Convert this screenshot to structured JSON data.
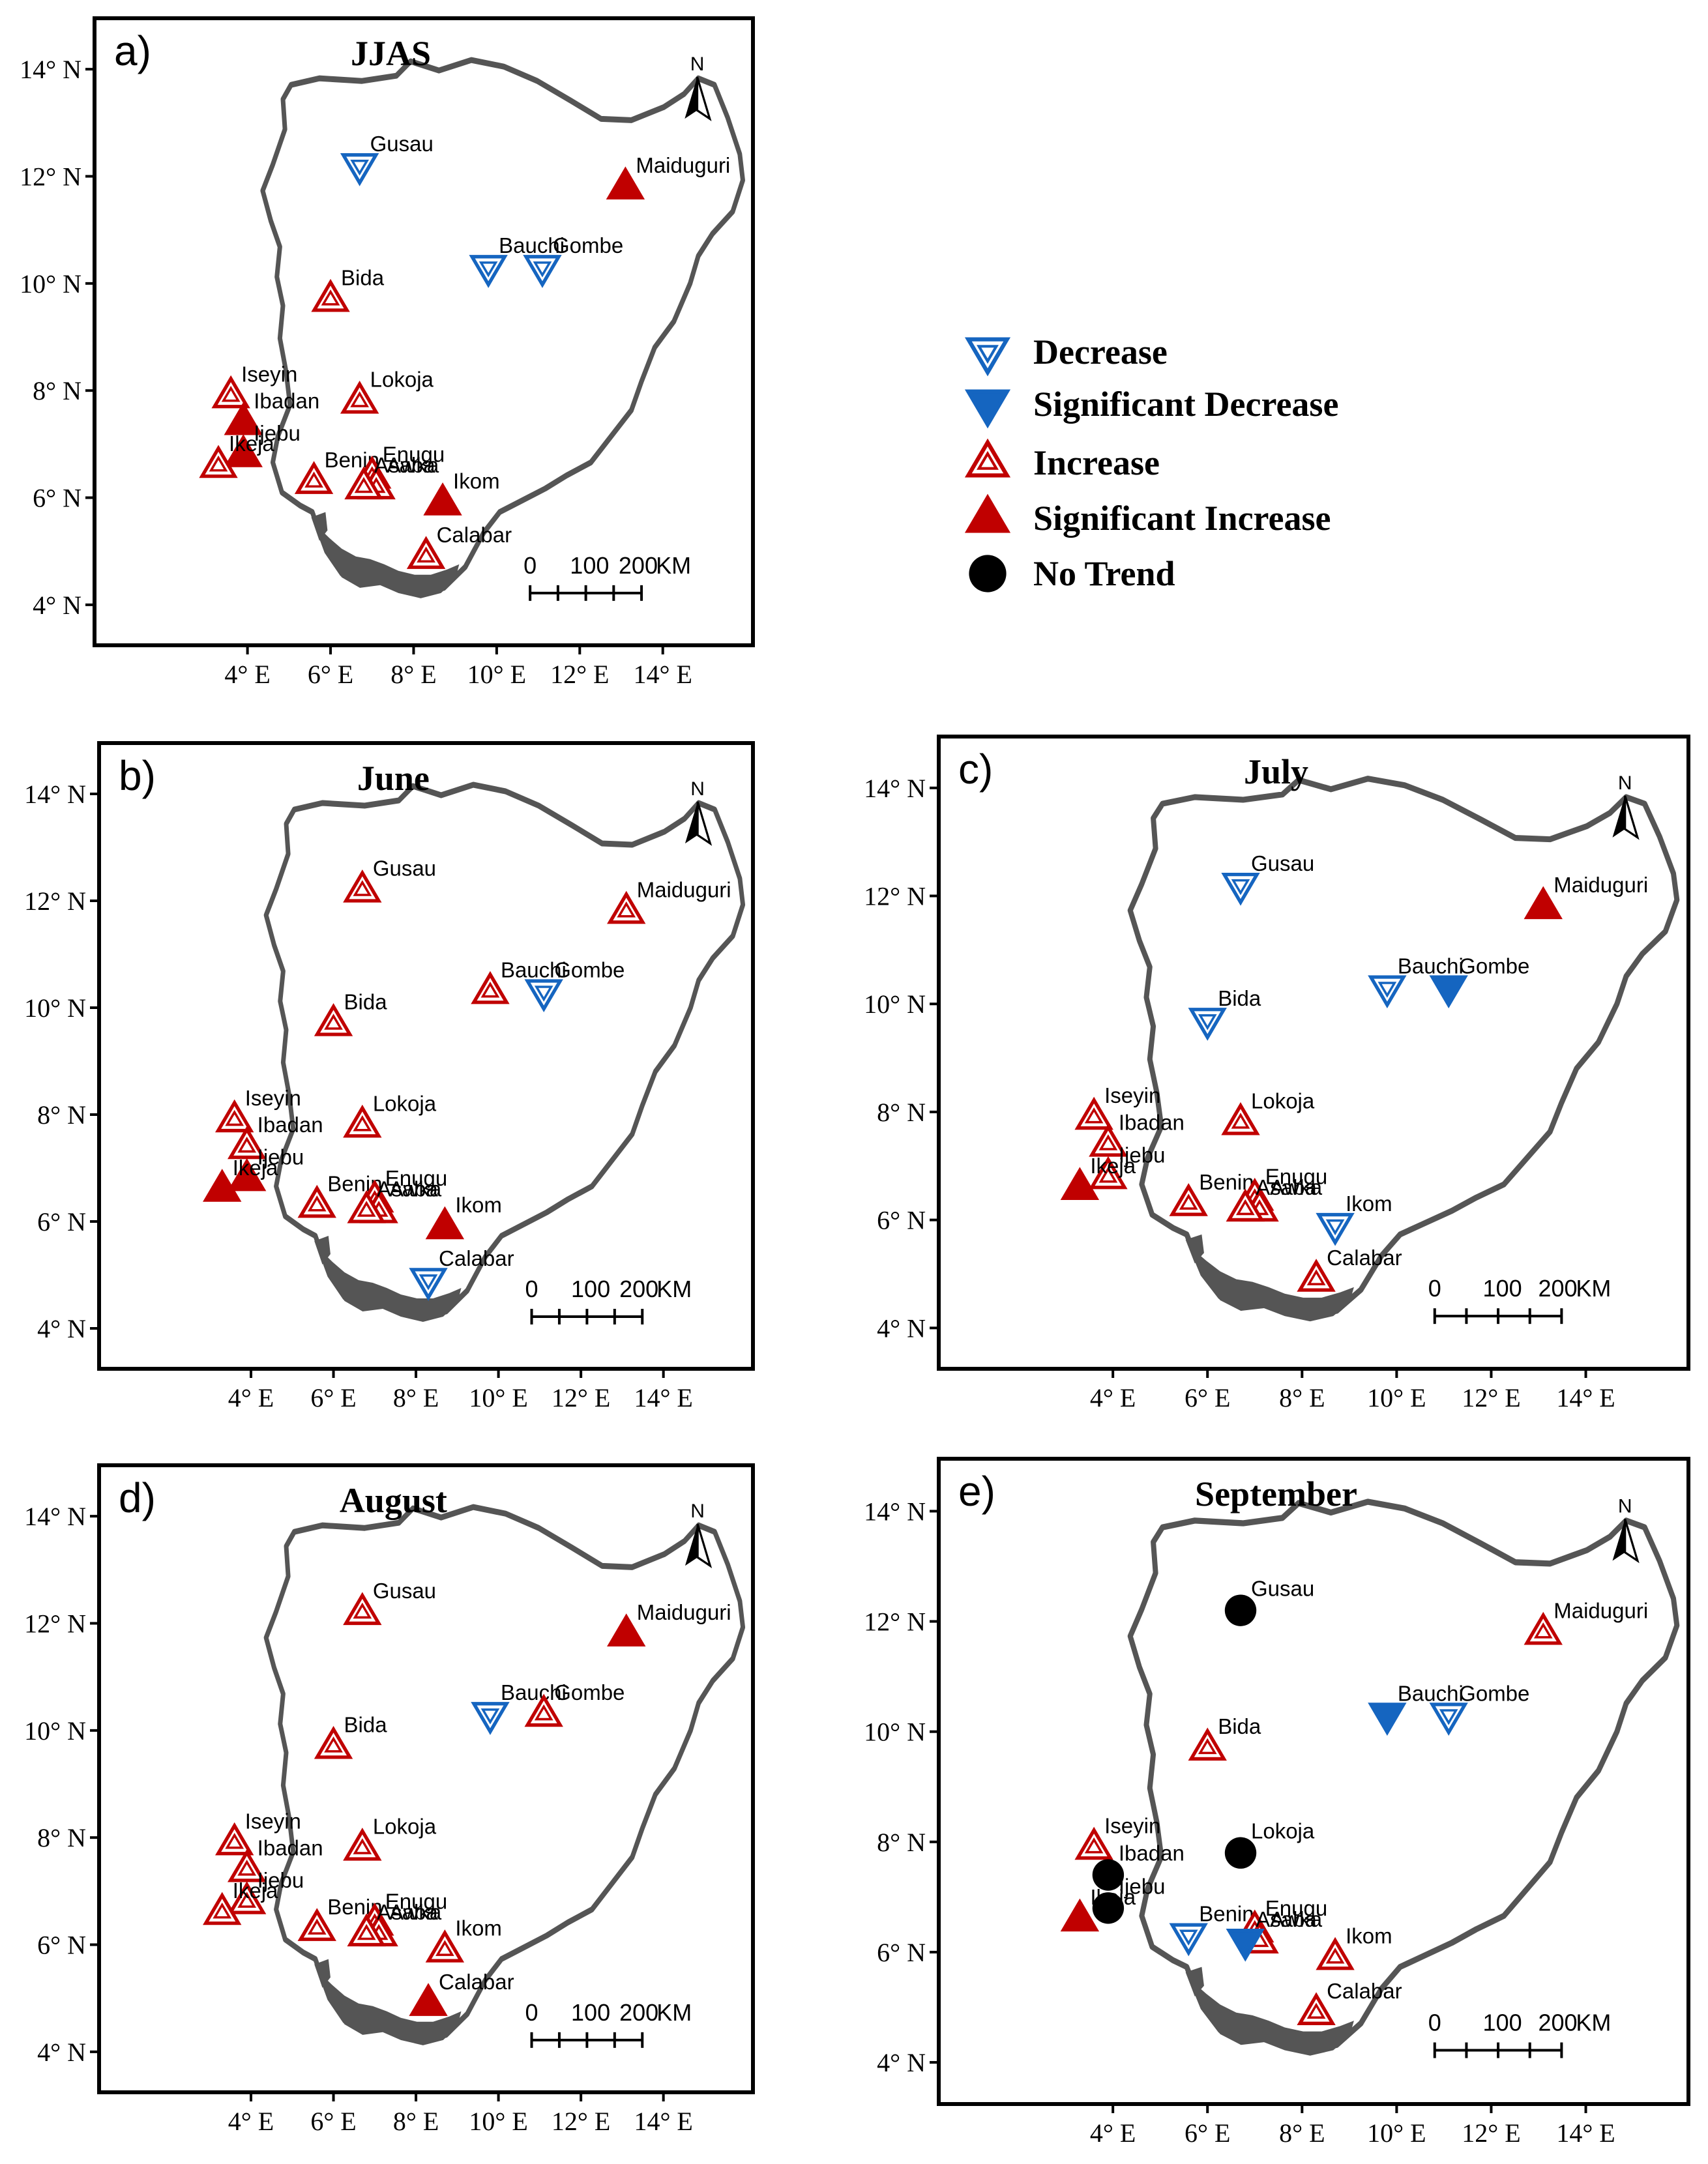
{
  "colors": {
    "increase": "#c00000",
    "decrease": "#1565c0",
    "notrend": "#000000",
    "outline": "#555555"
  },
  "axes": {
    "lat_labels": [
      "4° N",
      "6° N",
      "8° N",
      "10° N",
      "12° N",
      "14° N"
    ],
    "lon_labels": [
      "4° E",
      "6° E",
      "8° E",
      "10° E",
      "12° E",
      "14° E"
    ]
  },
  "scalebar": {
    "values": [
      "0",
      "100",
      "200"
    ],
    "unit": "KM"
  },
  "north_label": "N",
  "legend": [
    {
      "symbol": "dec",
      "label": "Decrease"
    },
    {
      "symbol": "sdec",
      "label": "Significant Decrease"
    },
    {
      "symbol": "inc",
      "label": "Increase"
    },
    {
      "symbol": "sinc",
      "label": "Significant Increase"
    },
    {
      "symbol": "none",
      "label": "No Trend"
    }
  ],
  "stations": [
    {
      "name": "Gusau",
      "lon": 6.7,
      "lat": 12.2
    },
    {
      "name": "Maiduguri",
      "lon": 13.1,
      "lat": 11.8
    },
    {
      "name": "Bauchi",
      "lon": 9.8,
      "lat": 10.3
    },
    {
      "name": "Gombe",
      "lon": 11.1,
      "lat": 10.3
    },
    {
      "name": "Bida",
      "lon": 6.0,
      "lat": 9.7
    },
    {
      "name": "Iseyin",
      "lon": 3.6,
      "lat": 7.9
    },
    {
      "name": "Lokoja",
      "lon": 6.7,
      "lat": 7.8
    },
    {
      "name": "Ibadan",
      "lon": 3.9,
      "lat": 7.4
    },
    {
      "name": "Ijebu",
      "lon": 3.9,
      "lat": 6.8
    },
    {
      "name": "Ikeja",
      "lon": 3.3,
      "lat": 6.6
    },
    {
      "name": "Benin",
      "lon": 5.6,
      "lat": 6.3
    },
    {
      "name": "Enugu",
      "lon": 7.0,
      "lat": 6.4
    },
    {
      "name": "Awka",
      "lon": 7.1,
      "lat": 6.2
    },
    {
      "name": "Asaba",
      "lon": 6.8,
      "lat": 6.2
    },
    {
      "name": "Ikom",
      "lon": 8.7,
      "lat": 5.9
    },
    {
      "name": "Calabar",
      "lon": 8.3,
      "lat": 4.9
    }
  ],
  "maps": [
    {
      "letter": "a)",
      "title": "JJAS",
      "trends": [
        "dec",
        "sinc",
        "dec",
        "dec",
        "inc",
        "inc",
        "inc",
        "sinc",
        "sinc",
        "inc",
        "inc",
        "inc",
        "inc",
        "inc",
        "sinc",
        "inc"
      ]
    },
    {
      "letter": "b)",
      "title": "June",
      "trends": [
        "inc",
        "inc",
        "inc",
        "dec",
        "inc",
        "inc",
        "inc",
        "inc",
        "sinc",
        "sinc",
        "inc",
        "inc",
        "inc",
        "inc",
        "sinc",
        "dec"
      ]
    },
    {
      "letter": "c)",
      "title": "July",
      "trends": [
        "dec",
        "sinc",
        "dec",
        "sdec",
        "dec",
        "inc",
        "inc",
        "inc",
        "inc",
        "sinc",
        "inc",
        "inc",
        "inc",
        "inc",
        "dec",
        "inc"
      ]
    },
    {
      "letter": "d)",
      "title": "August",
      "trends": [
        "inc",
        "sinc",
        "dec",
        "inc",
        "inc",
        "inc",
        "inc",
        "inc",
        "inc",
        "inc",
        "inc",
        "inc",
        "inc",
        "inc",
        "inc",
        "sinc"
      ]
    },
    {
      "letter": "e)",
      "title": "September",
      "trends": [
        "none",
        "inc",
        "sdec",
        "dec",
        "inc",
        "inc",
        "none",
        "none",
        "none",
        "sinc",
        "dec",
        "inc",
        "inc",
        "sdec",
        "inc",
        "inc"
      ]
    }
  ]
}
